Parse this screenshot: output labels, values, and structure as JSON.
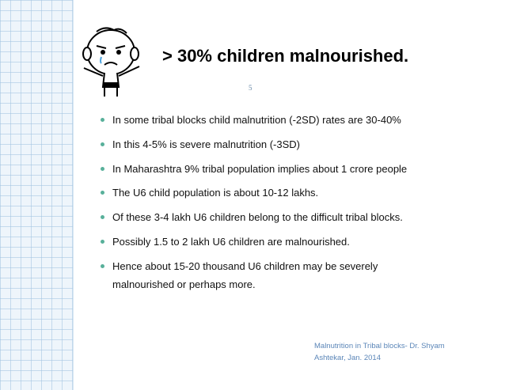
{
  "title": "> 30% children malnourished.",
  "page_number": "5",
  "bullets": [
    "In some tribal blocks child malnutrition (-2SD) rates are 30-40%",
    "In this 4-5% is severe malnutrition (-3SD)",
    "In Maharashtra 9% tribal population implies about 1 crore people",
    "The U6 child population is about 10-12 lakhs.",
    "Of these 3-4 lakh U6 children belong to the difficult tribal blocks.",
    "Possibly 1.5 to 2 lakh U6 children are malnourished.",
    "Hence about 15-20 thousand U6 children may be severely malnourished or perhaps more."
  ],
  "footer": "Malnutrition in Tribal blocks- Dr. Shyam Ashtekar, Jan. 2014"
}
